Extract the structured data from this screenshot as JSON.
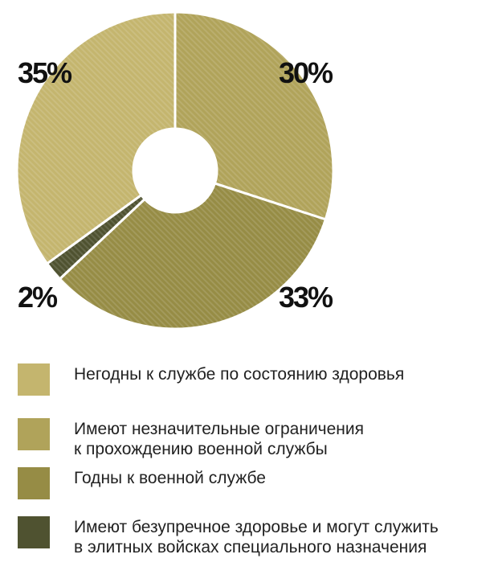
{
  "chart_data": {
    "type": "pie",
    "style": "donut",
    "categories": [
      "Негодны к службе по состоянию здоровья",
      "Имеют незначительные ограничения\nк прохождению военной службы",
      "Годны к военной службе",
      "Имеют безупречное здоровье и могут служить\nв элитных войсках специального назначения"
    ],
    "values": [
      35,
      30,
      33,
      2
    ],
    "value_labels": [
      "35%",
      "30%",
      "33%",
      "2%"
    ],
    "colors": [
      "#c4b56e",
      "#b0a35a",
      "#968c45",
      "#4f5230"
    ],
    "legend_position": "bottom"
  }
}
